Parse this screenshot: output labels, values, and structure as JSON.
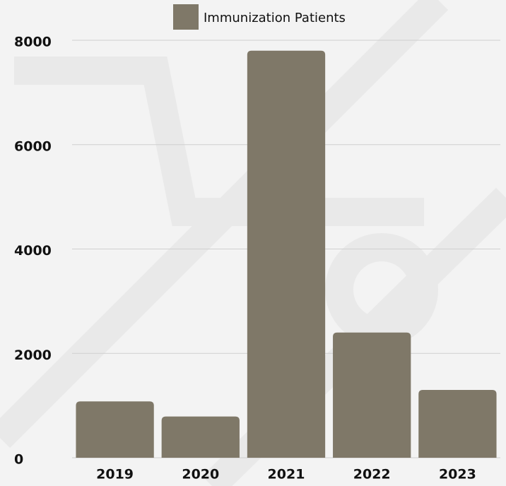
{
  "chart_data": {
    "type": "bar",
    "categories": [
      "2019",
      "2020",
      "2021",
      "2022",
      "2023"
    ],
    "series": [
      {
        "name": "Immunization Patients",
        "color": "#7f7868",
        "values": [
          1080,
          790,
          7800,
          2400,
          1300
        ]
      }
    ],
    "ylim": [
      0,
      8000
    ],
    "yticks": [
      0,
      2000,
      4000,
      6000,
      8000
    ],
    "grid": true,
    "legend": "top"
  }
}
